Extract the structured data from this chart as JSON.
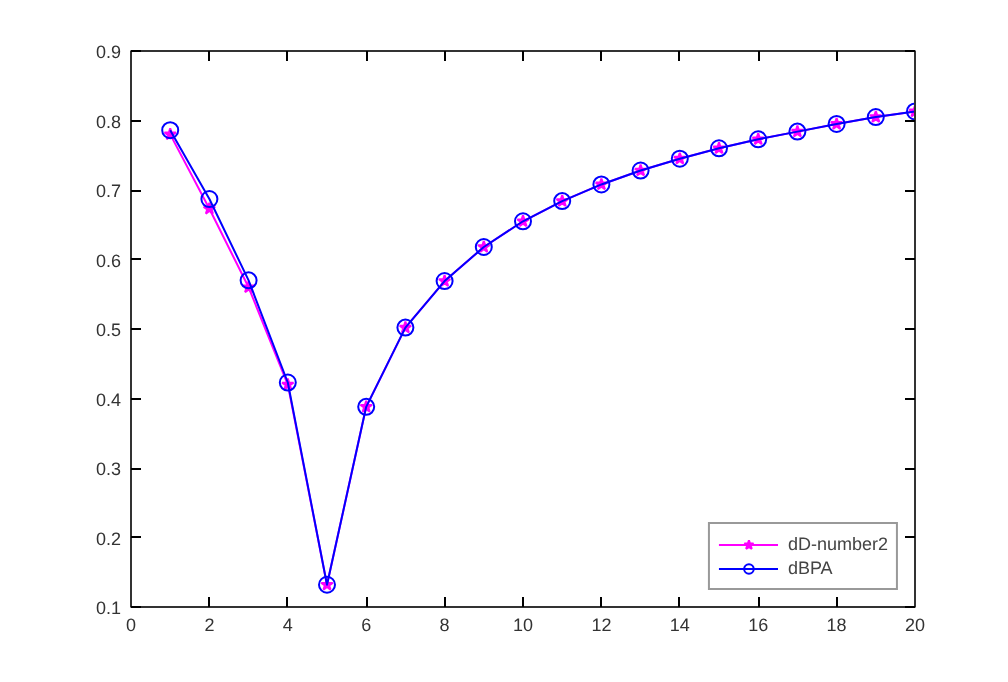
{
  "chart_data": {
    "type": "line",
    "x": [
      1,
      2,
      3,
      4,
      5,
      6,
      7,
      8,
      9,
      10,
      11,
      12,
      13,
      14,
      15,
      16,
      17,
      18,
      19,
      20
    ],
    "series": [
      {
        "name": "dD-number2",
        "color": "#ff00ff",
        "marker": "star",
        "values": [
          0.78,
          0.673,
          0.56,
          0.42,
          0.132,
          0.388,
          0.502,
          0.569,
          0.618,
          0.655,
          0.684,
          0.708,
          0.728,
          0.745,
          0.76,
          0.773,
          0.784,
          0.795,
          0.805,
          0.813
        ]
      },
      {
        "name": "dBPA",
        "color": "#0000ff",
        "marker": "circle",
        "values": [
          0.786,
          0.687,
          0.57,
          0.423,
          0.132,
          0.388,
          0.502,
          0.569,
          0.618,
          0.655,
          0.684,
          0.708,
          0.728,
          0.745,
          0.76,
          0.773,
          0.784,
          0.795,
          0.805,
          0.813
        ]
      }
    ],
    "xlim": [
      0,
      20
    ],
    "xticks": [
      0,
      2,
      4,
      6,
      8,
      10,
      12,
      14,
      16,
      18,
      20
    ],
    "ylim": [
      0.1,
      0.9
    ],
    "yticks": [
      0.1,
      0.2,
      0.3,
      0.4,
      0.5,
      0.6,
      0.7,
      0.8,
      0.9
    ],
    "grid": false,
    "legend": "bottom right",
    "line_style": "solid"
  }
}
